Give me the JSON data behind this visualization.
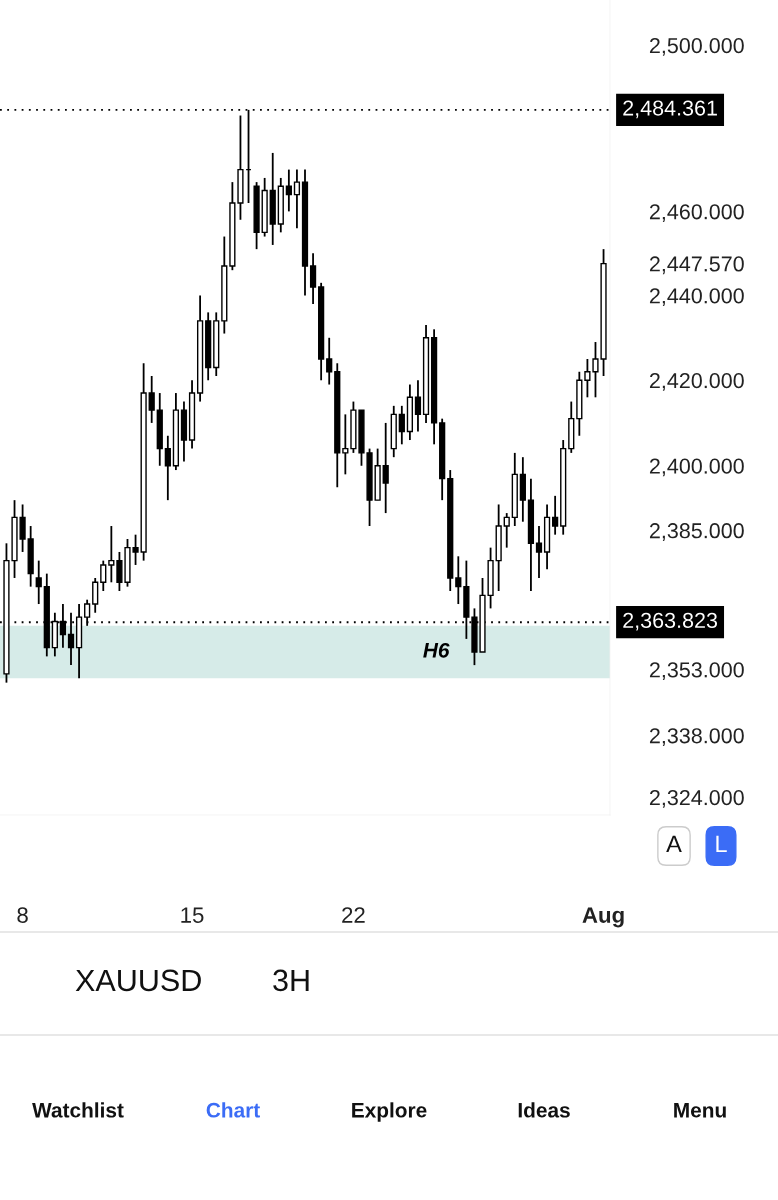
{
  "chart_data": {
    "type": "candlestick",
    "title": "XAUUSD",
    "subtitle": "3H",
    "categories": [
      null,
      null,
      "8",
      null,
      null,
      null,
      null,
      null,
      null,
      null,
      null,
      null,
      null,
      null,
      null,
      null,
      null,
      null,
      null,
      null,
      null,
      null,
      null,
      "15",
      null,
      null,
      null,
      null,
      null,
      null,
      null,
      null,
      null,
      null,
      null,
      null,
      null,
      null,
      null,
      null,
      null,
      null,
      null,
      "22",
      null,
      null,
      null,
      null,
      null,
      null,
      null,
      null,
      null,
      null,
      null,
      null,
      null,
      null,
      null,
      null,
      null,
      null,
      null,
      null,
      null,
      null,
      null,
      null,
      null,
      null,
      null,
      null,
      null,
      null,
      "Aug"
    ],
    "ohlc": [
      [
        2352,
        2382,
        2350,
        2378
      ],
      [
        2378,
        2392,
        2374,
        2388
      ],
      [
        2388,
        2391,
        2380,
        2383
      ],
      [
        2383,
        2386,
        2372,
        2375
      ],
      [
        2374,
        2378,
        2368,
        2372
      ],
      [
        2372,
        2375,
        2356,
        2358
      ],
      [
        2358,
        2366,
        2356,
        2364
      ],
      [
        2364,
        2368,
        2358,
        2361
      ],
      [
        2361,
        2366,
        2354,
        2358
      ],
      [
        2358,
        2368,
        2351,
        2365
      ],
      [
        2365,
        2369,
        2363,
        2368
      ],
      [
        2368,
        2374,
        2366,
        2373
      ],
      [
        2373,
        2378,
        2371,
        2377
      ],
      [
        2377,
        2386,
        2373,
        2378
      ],
      [
        2378,
        2380,
        2371,
        2373
      ],
      [
        2373,
        2383,
        2372,
        2381
      ],
      [
        2381,
        2384,
        2377,
        2380
      ],
      [
        2380,
        2424,
        2378,
        2417
      ],
      [
        2417,
        2421,
        2410,
        2413
      ],
      [
        2413,
        2417,
        2400,
        2404
      ],
      [
        2404,
        2407,
        2392,
        2400
      ],
      [
        2400,
        2417,
        2399,
        2413
      ],
      [
        2413,
        2415,
        2401,
        2406
      ],
      [
        2406,
        2420,
        2404,
        2417
      ],
      [
        2417,
        2440,
        2415,
        2434
      ],
      [
        2434,
        2436,
        2420,
        2423
      ],
      [
        2423,
        2436,
        2421,
        2434
      ],
      [
        2434,
        2454,
        2431,
        2447
      ],
      [
        2447,
        2467,
        2446,
        2462
      ],
      [
        2462,
        2483,
        2458,
        2470
      ],
      [
        2470,
        2484.361,
        2462,
        2470
      ],
      [
        2466,
        2467,
        2451,
        2455
      ],
      [
        2455,
        2468,
        2454,
        2465
      ],
      [
        2465,
        2474,
        2452,
        2457
      ],
      [
        2457,
        2468,
        2455,
        2466
      ],
      [
        2466,
        2470,
        2460,
        2464
      ],
      [
        2464,
        2470,
        2456,
        2467
      ],
      [
        2467,
        2470,
        2440,
        2447
      ],
      [
        2447,
        2450,
        2438,
        2442
      ],
      [
        2442,
        2443,
        2420,
        2425
      ],
      [
        2425,
        2430,
        2419,
        2422
      ],
      [
        2422,
        2424,
        2395,
        2403
      ],
      [
        2403,
        2412,
        2398,
        2404
      ],
      [
        2404,
        2415,
        2403,
        2413
      ],
      [
        2413,
        2413,
        2400,
        2403
      ],
      [
        2403,
        2404,
        2386,
        2392
      ],
      [
        2392,
        2404,
        2392,
        2400
      ],
      [
        2400,
        2410,
        2389,
        2396
      ],
      [
        2404,
        2414,
        2402,
        2412
      ],
      [
        2412,
        2414,
        2405,
        2408
      ],
      [
        2408,
        2419,
        2406,
        2416
      ],
      [
        2416,
        2420,
        2408,
        2412
      ],
      [
        2412,
        2433,
        2410,
        2430
      ],
      [
        2430,
        2432,
        2405,
        2410
      ],
      [
        2410,
        2411,
        2392,
        2397
      ],
      [
        2397,
        2399,
        2371,
        2374
      ],
      [
        2374,
        2379,
        2368,
        2372
      ],
      [
        2372,
        2378,
        2360,
        2365
      ],
      [
        2365,
        2367,
        2354,
        2357
      ],
      [
        2357,
        2374,
        2357,
        2370
      ],
      [
        2370,
        2381,
        2367,
        2378
      ],
      [
        2378,
        2391,
        2371,
        2386
      ],
      [
        2386,
        2389,
        2381,
        2388
      ],
      [
        2388,
        2403,
        2386,
        2398
      ],
      [
        2398,
        2402,
        2387,
        2392
      ],
      [
        2392,
        2397,
        2371,
        2382
      ],
      [
        2382,
        2386,
        2374,
        2380
      ],
      [
        2380,
        2391,
        2376,
        2388
      ],
      [
        2388,
        2393,
        2384,
        2386
      ],
      [
        2386,
        2406,
        2384,
        2404
      ],
      [
        2404,
        2415,
        2403,
        2411
      ],
      [
        2411,
        2422,
        2407,
        2420
      ],
      [
        2420,
        2425,
        2416,
        2422
      ],
      [
        2422,
        2429,
        2416,
        2425
      ],
      [
        2425,
        2451,
        2421,
        2447.57
      ]
    ],
    "color": "#000000",
    "log": true,
    "ylim": [
      2320,
      2511
    ],
    "yticks": [
      {
        "value": 2500,
        "label": "2,500.000"
      },
      {
        "value": 2460,
        "label": "2,460.000"
      },
      {
        "value": 2447.57,
        "label": "2,447.570"
      },
      {
        "value": 2440,
        "label": "2,440.000"
      },
      {
        "value": 2420,
        "label": "2,420.000"
      },
      {
        "value": 2400,
        "label": "2,400.000"
      },
      {
        "value": 2385,
        "label": "2,385.000"
      },
      {
        "value": 2353,
        "label": "2,353.000"
      },
      {
        "value": 2338,
        "label": "2,338.000"
      },
      {
        "value": 2324,
        "label": "2,324.000"
      }
    ],
    "ref_lines": [
      {
        "axis": "y",
        "value": 2484.361,
        "label": "2,484.361",
        "color": "#000000",
        "line_style": "dotted"
      },
      {
        "axis": "y",
        "value": 2363.823,
        "label": "2,363.823",
        "color": "#000000",
        "line_style": "dotted"
      }
    ],
    "bands": [
      {
        "axis": "y",
        "from": 2351,
        "to": 2363,
        "label": "H6",
        "color": "#d6ebe8"
      }
    ],
    "grid": false,
    "legend": false,
    "annotations": [
      "A",
      "L",
      "Watchlist",
      "Chart",
      "Explore",
      "Ideas",
      "Menu"
    ]
  }
}
